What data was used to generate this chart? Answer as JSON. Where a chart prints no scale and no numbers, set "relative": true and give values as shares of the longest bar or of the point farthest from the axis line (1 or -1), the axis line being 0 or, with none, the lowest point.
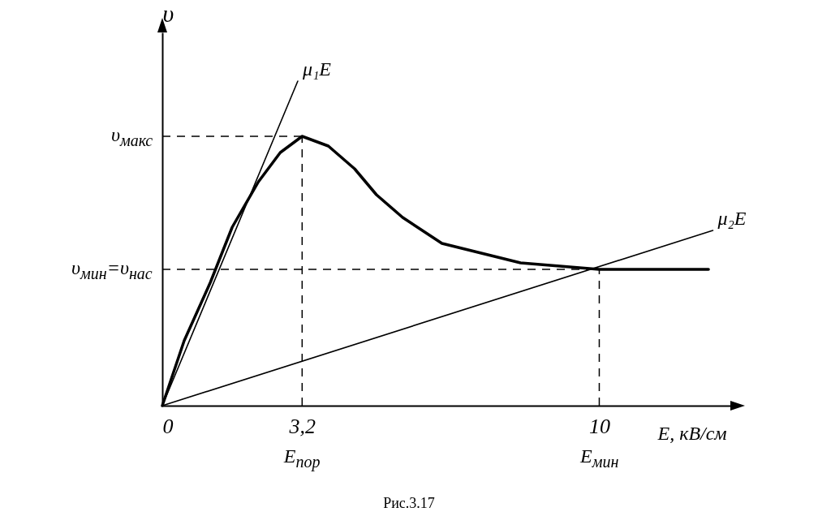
{
  "chart_data": {
    "type": "line",
    "relative": true,
    "xlabel": "E, кВ/см",
    "ylabel": "υ",
    "xlim": [
      0,
      13
    ],
    "xticks": [
      0,
      {
        "value": 3.2,
        "label": "3,2"
      },
      10
    ],
    "series": [
      {
        "color": "#000000",
        "x": [
          0,
          0.5,
          1.1,
          1.6,
          2.2,
          2.7,
          3.2,
          3.8,
          4.4,
          4.9,
          5.5,
          6.4,
          7.3,
          8.2,
          9.1,
          10,
          12.5
        ],
        "values": [
          0,
          0.2,
          0.38,
          0.55,
          0.69,
          0.78,
          0.83,
          0.8,
          0.73,
          0.65,
          0.58,
          0.5,
          0.47,
          0.44,
          0.43,
          0.42,
          0.42
        ]
      },
      {
        "name": "μ₁E",
        "color": "#000000",
        "x": [
          0,
          3.1
        ],
        "values": [
          0,
          1
        ]
      },
      {
        "name": "μ₂E",
        "color": "#000000",
        "x": [
          0,
          12.6
        ],
        "values": [
          0,
          0.54
        ]
      }
    ],
    "ref_lines": [
      {
        "axis": "y",
        "value": 0.83,
        "label": "υ$_{макс}$",
        "line_style": "dashed"
      },
      {
        "axis": "y",
        "value": 0.42,
        "label": "υ$_{мин}$=υ$_{нас}$",
        "line_style": "dashed"
      },
      {
        "axis": "x",
        "value": 3.2,
        "label": "E$_{пор}$",
        "line_style": "dashed"
      },
      {
        "axis": "x",
        "value": 10,
        "label": "E$_{мин}$",
        "line_style": "dashed"
      }
    ],
    "annotations": [
      "Рис.3.17"
    ]
  }
}
